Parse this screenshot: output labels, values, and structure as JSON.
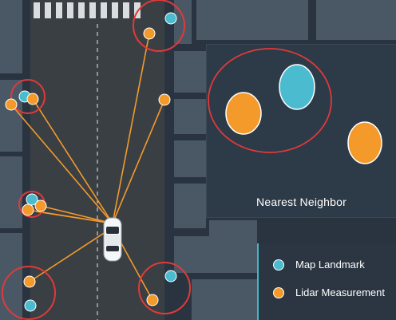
{
  "colors": {
    "ground": "#2a3440",
    "building": "#4a5866",
    "road": "#3a3f44",
    "landmark": "#4bbccf",
    "measurement": "#f39a2b",
    "association_line": "#f39a2b",
    "gate_circle": "#e03a3a"
  },
  "inset": {
    "caption": "Nearest Neighbor"
  },
  "legend": {
    "items": [
      {
        "label": "Map Landmark",
        "color": "#4bbccf",
        "icon": "teal-dot-icon"
      },
      {
        "label": "Lidar Measurement",
        "color": "#f39a2b",
        "icon": "orange-dot-icon"
      }
    ]
  }
}
